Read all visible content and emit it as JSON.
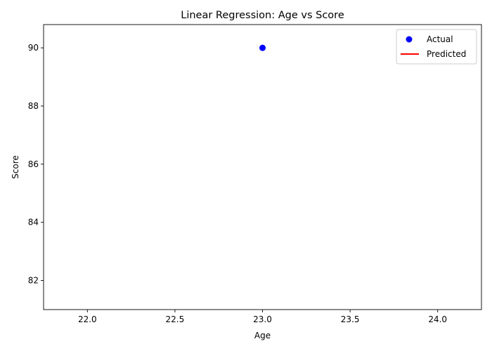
{
  "chart_data": {
    "type": "scatter",
    "title": "Linear Regression: Age vs Score",
    "xlabel": "Age",
    "ylabel": "Score",
    "xlim": [
      21.75,
      24.25
    ],
    "ylim": [
      81.0,
      90.8
    ],
    "x_ticks": [
      22.0,
      22.5,
      23.0,
      23.5,
      24.0
    ],
    "x_tick_labels": [
      "22.0",
      "22.5",
      "23.0",
      "23.5",
      "24.0"
    ],
    "y_ticks": [
      82,
      84,
      86,
      88,
      90
    ],
    "y_tick_labels": [
      "82",
      "84",
      "86",
      "88",
      "90"
    ],
    "grid": false,
    "legend": {
      "placement": "top-right",
      "entries": [
        {
          "label": "Actual",
          "marker": "circle",
          "color": "#0000ff"
        },
        {
          "label": "Predicted",
          "marker": "line",
          "color": "#ff0000"
        }
      ]
    },
    "series": [
      {
        "name": "Actual",
        "kind": "scatter",
        "color": "#0000ff",
        "points": [
          {
            "x": 23.0,
            "y": 90.0
          }
        ]
      },
      {
        "name": "Predicted",
        "kind": "line",
        "color": "#ff0000",
        "points": []
      }
    ]
  }
}
